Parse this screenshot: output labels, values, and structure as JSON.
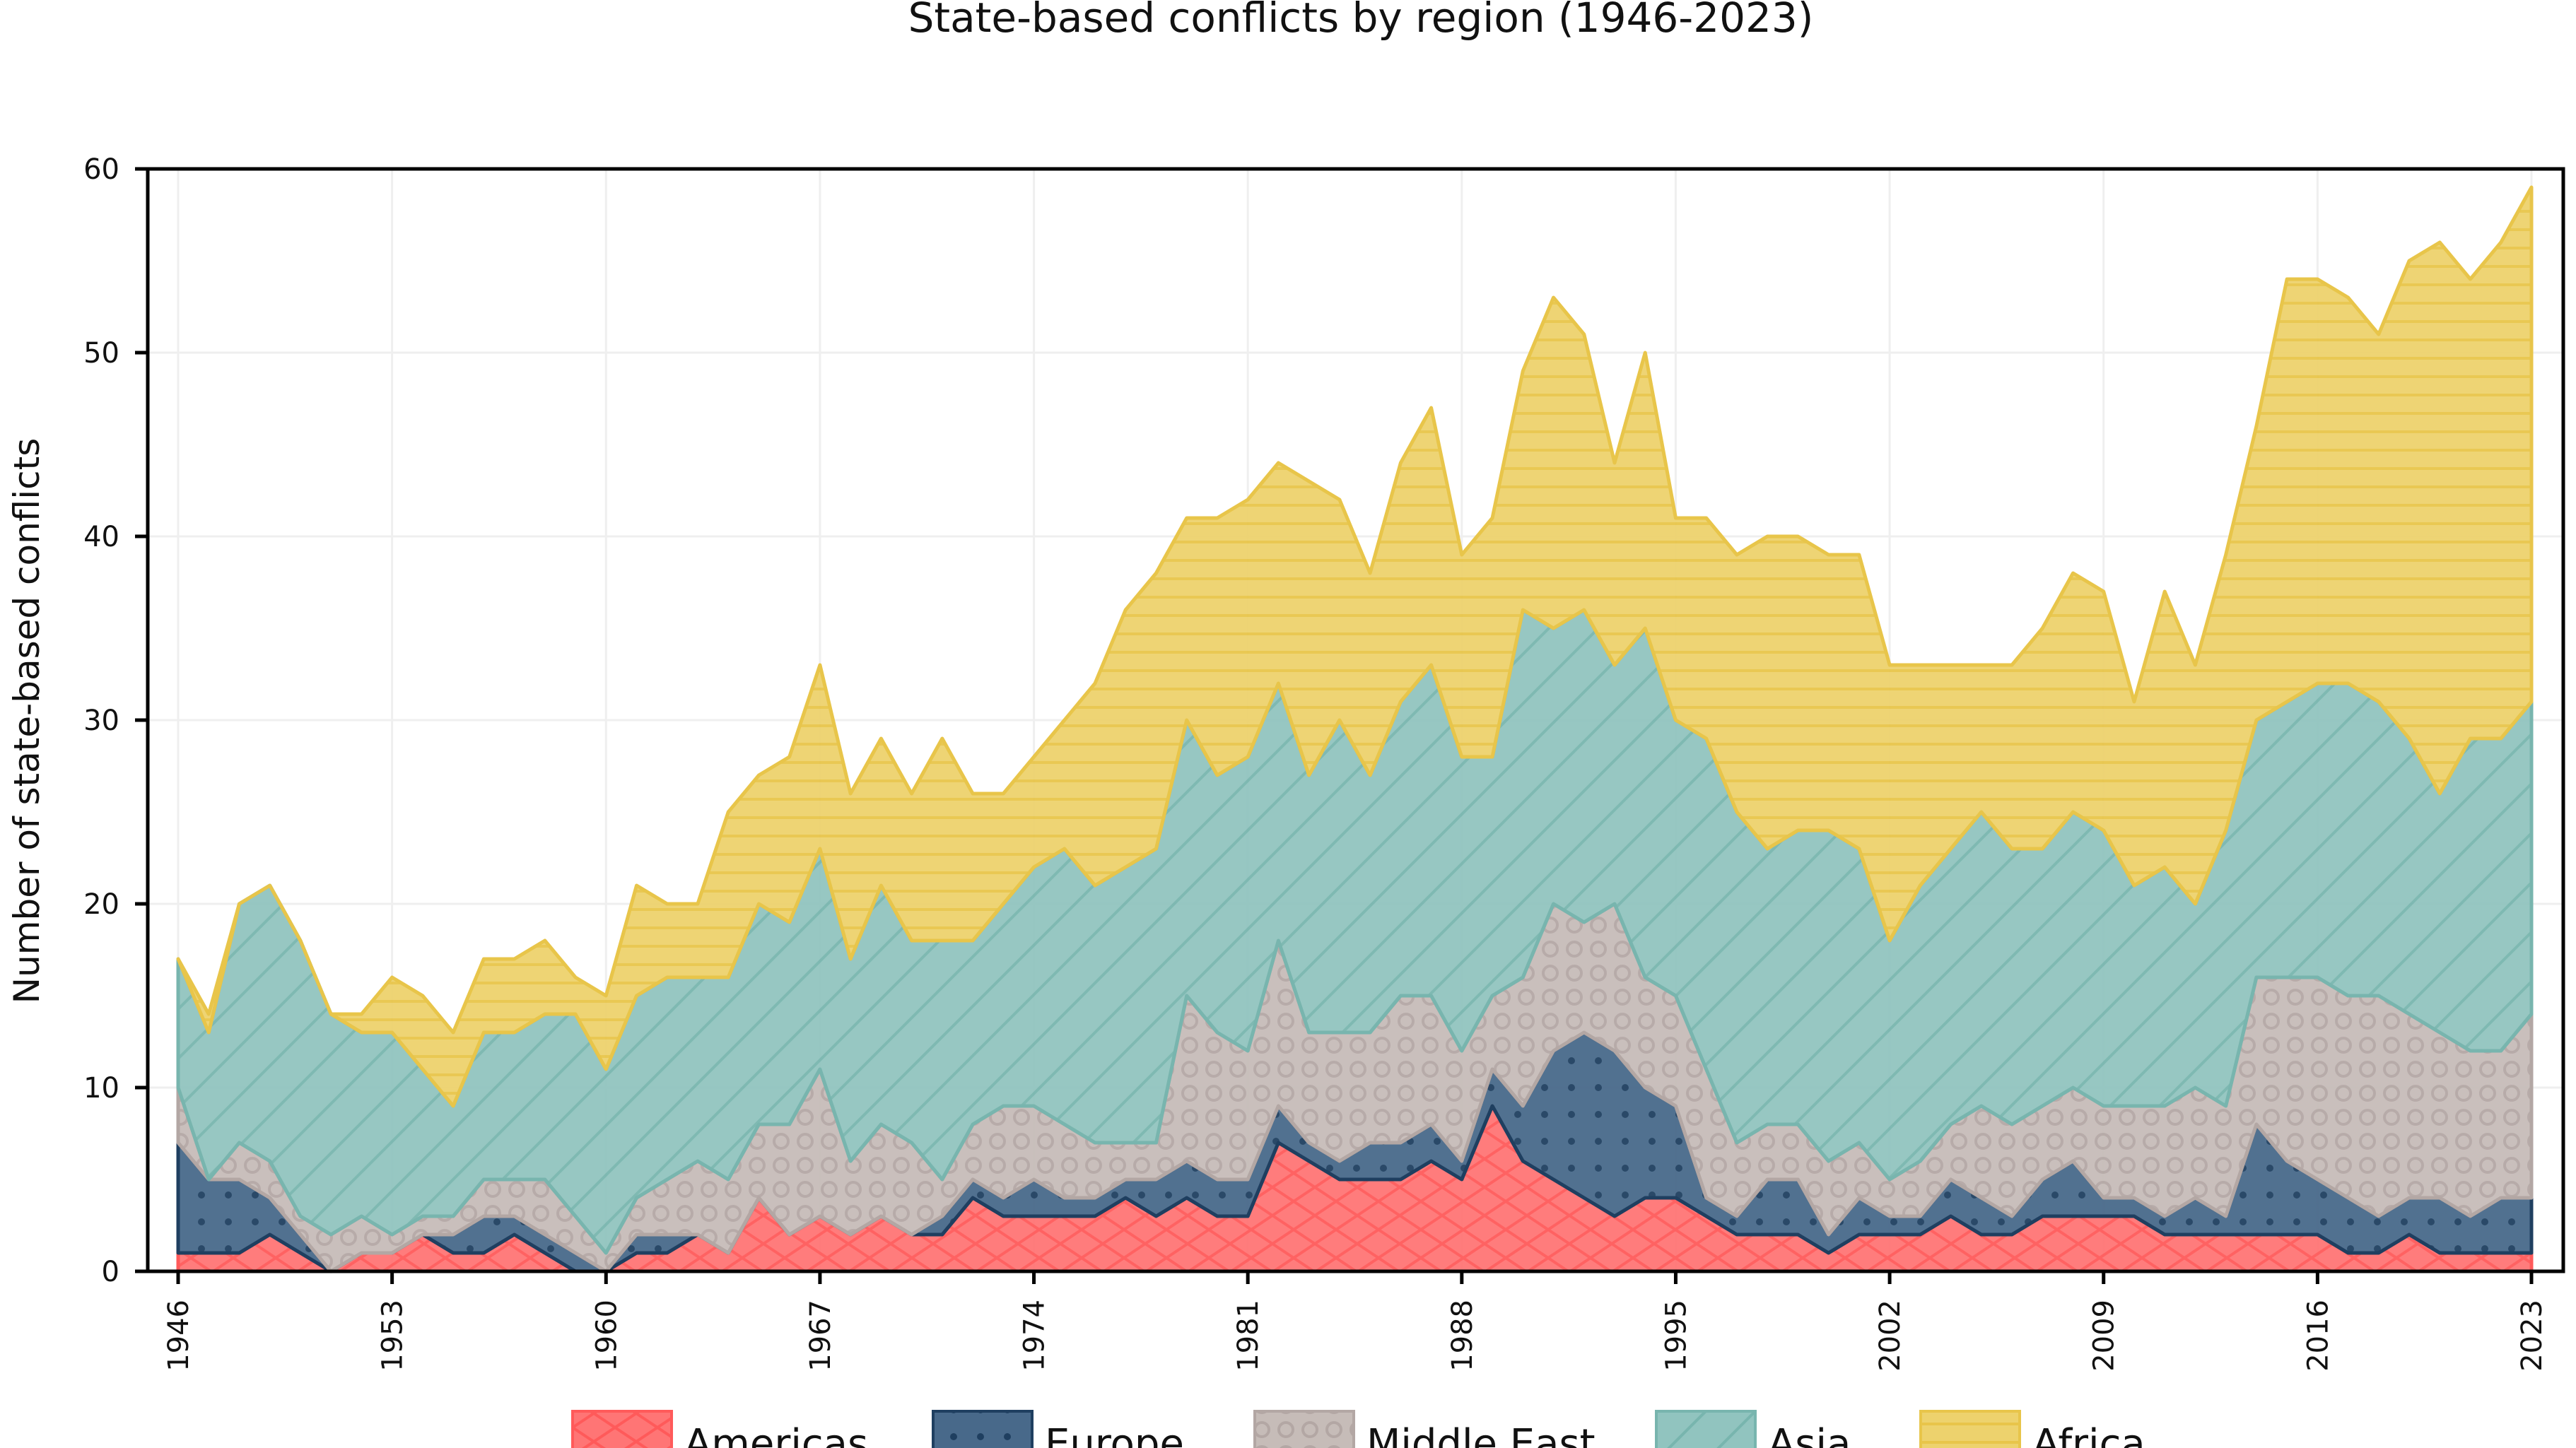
{
  "chart_data": {
    "type": "area",
    "stacked": true,
    "title": "State-based conflicts by region (1946-2023)",
    "xlabel": "",
    "ylabel": "Number of state-based conflicts",
    "xlim": [
      1946,
      2023
    ],
    "ylim": [
      0,
      60
    ],
    "x_ticks": [
      "1946",
      "1953",
      "1960",
      "1967",
      "1974",
      "1981",
      "1988",
      "1995",
      "2002",
      "2009",
      "2016",
      "2023"
    ],
    "y_ticks": [
      "0",
      "10",
      "20",
      "30",
      "40",
      "50",
      "60"
    ],
    "grid": true,
    "legend_position": "bottom",
    "x": [
      1946,
      1947,
      1948,
      1949,
      1950,
      1951,
      1952,
      1953,
      1954,
      1955,
      1956,
      1957,
      1958,
      1959,
      1960,
      1961,
      1962,
      1963,
      1964,
      1965,
      1966,
      1967,
      1968,
      1969,
      1970,
      1971,
      1972,
      1973,
      1974,
      1975,
      1976,
      1977,
      1978,
      1979,
      1980,
      1981,
      1982,
      1983,
      1984,
      1985,
      1986,
      1987,
      1988,
      1989,
      1990,
      1991,
      1992,
      1993,
      1994,
      1995,
      1996,
      1997,
      1998,
      1999,
      2000,
      2001,
      2002,
      2003,
      2004,
      2005,
      2006,
      2007,
      2008,
      2009,
      2010,
      2011,
      2012,
      2013,
      2014,
      2015,
      2016,
      2017,
      2018,
      2019,
      2020,
      2021,
      2022,
      2023
    ],
    "series": [
      {
        "name": "Americas",
        "color": "#ff7575",
        "edge": "#ff5a5a",
        "pattern": "crosshatch",
        "values": [
          1,
          1,
          1,
          2,
          1,
          0,
          1,
          1,
          2,
          1,
          1,
          2,
          1,
          0,
          0,
          1,
          1,
          2,
          1,
          4,
          2,
          3,
          2,
          3,
          2,
          2,
          4,
          3,
          3,
          3,
          3,
          4,
          3,
          4,
          3,
          3,
          7,
          6,
          5,
          5,
          5,
          6,
          5,
          9,
          6,
          5,
          4,
          3,
          4,
          4,
          3,
          2,
          2,
          2,
          1,
          2,
          2,
          2,
          3,
          2,
          2,
          3,
          3,
          3,
          3,
          2,
          2,
          2,
          2,
          2,
          2,
          1,
          1,
          2,
          1,
          1,
          1,
          1
        ]
      },
      {
        "name": "Europe",
        "color": "#48698a",
        "edge": "#1f3f60",
        "pattern": "dots",
        "values": [
          6,
          4,
          4,
          2,
          1,
          0,
          0,
          0,
          0,
          1,
          2,
          1,
          1,
          1,
          0,
          1,
          1,
          0,
          0,
          0,
          0,
          0,
          0,
          0,
          0,
          1,
          1,
          1,
          2,
          1,
          1,
          1,
          2,
          2,
          2,
          2,
          2,
          1,
          1,
          2,
          2,
          2,
          1,
          2,
          3,
          7,
          9,
          9,
          6,
          5,
          1,
          1,
          3,
          3,
          1,
          2,
          1,
          1,
          2,
          2,
          1,
          2,
          3,
          1,
          1,
          1,
          2,
          1,
          6,
          4,
          3,
          3,
          2,
          2,
          3,
          2,
          3,
          3
        ]
      },
      {
        "name": "Middle East",
        "color": "#c6bcb8",
        "edge": "#b3a7a4",
        "pattern": "rings",
        "values": [
          3,
          0,
          2,
          2,
          1,
          2,
          2,
          1,
          1,
          1,
          2,
          2,
          3,
          2,
          1,
          2,
          3,
          4,
          4,
          4,
          6,
          8,
          4,
          5,
          5,
          2,
          3,
          5,
          4,
          4,
          3,
          2,
          2,
          9,
          8,
          7,
          9,
          6,
          7,
          6,
          8,
          7,
          6,
          4,
          7,
          8,
          6,
          8,
          6,
          6,
          7,
          4,
          3,
          3,
          4,
          3,
          2,
          3,
          3,
          5,
          5,
          4,
          4,
          5,
          5,
          6,
          6,
          6,
          8,
          10,
          11,
          11,
          12,
          10,
          9,
          9,
          8,
          10
        ]
      },
      {
        "name": "Asia",
        "color": "#91c4bf",
        "edge": "#78b5ae",
        "pattern": "diagonal",
        "values": [
          7,
          8,
          13,
          15,
          15,
          12,
          10,
          11,
          8,
          6,
          8,
          8,
          9,
          11,
          10,
          11,
          11,
          10,
          11,
          12,
          11,
          12,
          11,
          13,
          11,
          13,
          10,
          11,
          13,
          15,
          14,
          15,
          16,
          15,
          14,
          16,
          14,
          14,
          17,
          14,
          16,
          18,
          16,
          13,
          20,
          15,
          17,
          13,
          19,
          15,
          18,
          18,
          15,
          16,
          18,
          16,
          13,
          15,
          15,
          16,
          15,
          14,
          15,
          15,
          12,
          13,
          10,
          15,
          14,
          15,
          16,
          17,
          16,
          15,
          13,
          17,
          17,
          17
        ]
      },
      {
        "name": "Africa",
        "color": "#edd26d",
        "edge": "#e8c54a",
        "pattern": "horizontal",
        "values": [
          0,
          1,
          0,
          0,
          0,
          0,
          1,
          3,
          4,
          4,
          4,
          4,
          4,
          2,
          4,
          6,
          4,
          4,
          9,
          7,
          9,
          10,
          9,
          8,
          8,
          11,
          8,
          6,
          6,
          7,
          11,
          14,
          15,
          11,
          14,
          14,
          12,
          16,
          12,
          11,
          13,
          14,
          11,
          13,
          13,
          18,
          15,
          11,
          15,
          11,
          12,
          14,
          17,
          16,
          15,
          16,
          15,
          12,
          10,
          8,
          10,
          12,
          13,
          13,
          10,
          15,
          13,
          15,
          16,
          23,
          22,
          21,
          20,
          26,
          30,
          25,
          27,
          28
        ]
      }
    ]
  }
}
